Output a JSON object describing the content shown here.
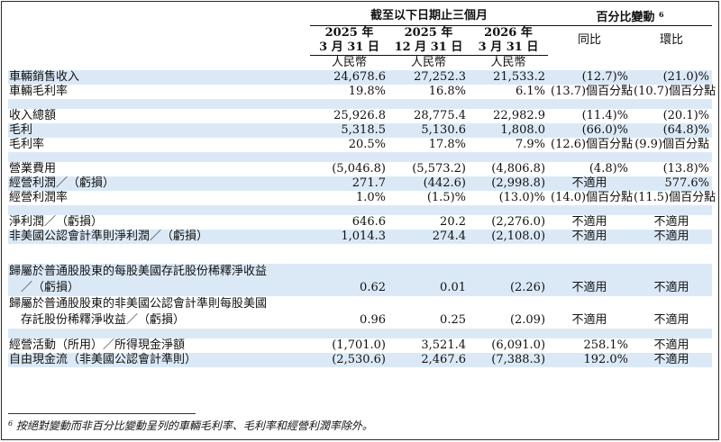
{
  "header": {
    "period_group": "截至以下日期止三個月",
    "pct_group": "百分比變動",
    "pct_note_mark": "6",
    "col1_year": "2025 年",
    "col1_date": "3 月 31 日",
    "col2_year": "2025 年",
    "col2_date": "12 月 31 日",
    "col3_year": "2026 年",
    "col3_date": "3 月 31 日",
    "yoy": "同比",
    "qoq": "環比",
    "unit1": "人民幣",
    "unit2": "人民幣",
    "unit3": "人民幣"
  },
  "rows": {
    "r1": {
      "label": "車輛銷售收入",
      "c1": "24,678.6",
      "c2": "27,252.3",
      "c3": "21,533.2",
      "yoy": "(12.7)%",
      "qoq": "(21.0)%"
    },
    "r2": {
      "label": "車輛毛利率",
      "c1": "19.8%",
      "c2": "16.8%",
      "c3": "6.1%",
      "yoy": "(13.7)個百分點",
      "qoq": "(10.7)個百分點"
    },
    "r3": {
      "label": "收入總額",
      "c1": "25,926.8",
      "c2": "28,775.4",
      "c3": "22,982.9",
      "yoy": "(11.4)%",
      "qoq": "(20.1)%"
    },
    "r4": {
      "label": "毛利",
      "c1": "5,318.5",
      "c2": "5,130.6",
      "c3": "1,808.0",
      "yoy": "(66.0)%",
      "qoq": "(64.8)%"
    },
    "r5": {
      "label": "毛利率",
      "c1": "20.5%",
      "c2": "17.8%",
      "c3": "7.9%",
      "yoy": "(12.6)個百分點",
      "qoq": "(9.9)個百分點"
    },
    "r6": {
      "label": "營業費用",
      "c1": "(5,046.8)",
      "c2": "(5,573.2)",
      "c3": "(4,806.8)",
      "yoy": "(4.8)%",
      "qoq": "(13.8)%"
    },
    "r7": {
      "label": "經營利潤／（虧損）",
      "c1": "271.7",
      "c2": "(442.6)",
      "c3": "(2,998.8)",
      "yoy": "不適用",
      "qoq": "577.6%"
    },
    "r8": {
      "label": "經營利潤率",
      "c1": "1.0%",
      "c2": "(1.5)%",
      "c3": "(13.0)%",
      "yoy": "(14.0)個百分點",
      "qoq": "(11.5)個百分點"
    },
    "r9": {
      "label": "淨利潤／（虧損）",
      "c1": "646.6",
      "c2": "20.2",
      "c3": "(2,276.0)",
      "yoy": "不適用",
      "qoq": "不適用"
    },
    "r10": {
      "label": "非美國公認會計準則淨利潤／（虧損）",
      "c1": "1,014.3",
      "c2": "274.4",
      "c3": "(2,108.0)",
      "yoy": "不適用",
      "qoq": "不適用"
    },
    "r11": {
      "label_a": "歸屬於普通股股東的每股美國存託股份稀釋淨收益",
      "label_b": "／（虧損）",
      "c1": "0.62",
      "c2": "0.01",
      "c3": "(2.26)",
      "yoy": "不適用",
      "qoq": "不適用"
    },
    "r12": {
      "label_a": "歸屬於普通股股東的非美國公認會計準則每股美國",
      "label_b": "存託股份稀釋淨收益／（虧損）",
      "c1": "0.96",
      "c2": "0.25",
      "c3": "(2.09)",
      "yoy": "不適用",
      "qoq": "不適用"
    },
    "r13": {
      "label": "經營活動（所用）／所得現金淨額",
      "c1": "(1,701.0)",
      "c2": "3,521.4",
      "c3": "(6,091.0)",
      "yoy": "258.1%",
      "qoq": "不適用"
    },
    "r14": {
      "label": "自由現金流（非美國公認會計準則）",
      "c1": "(2,530.6)",
      "c2": "2,467.6",
      "c3": "(7,388.3)",
      "yoy": "192.0%",
      "qoq": "不適用"
    }
  },
  "footnote": {
    "mark": "6",
    "text": "按絕對變動而非百分比變動呈列的車輛毛利率、毛利率和經營利潤率除外。"
  }
}
